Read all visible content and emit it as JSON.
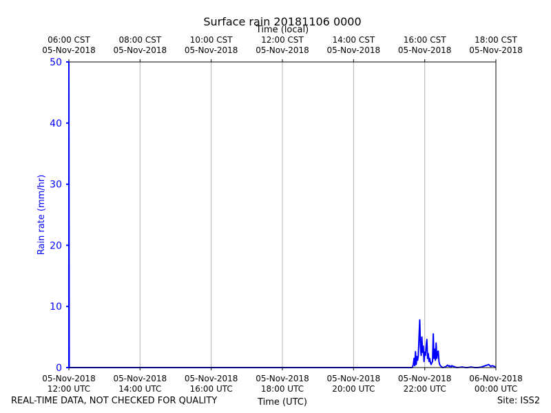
{
  "chart_data": {
    "type": "line",
    "title": "Surface rain 20181106 0000",
    "xlabel": "Time (UTC)",
    "xlabel_top": "Time (local)",
    "ylabel": "Rain rate (mm/hr)",
    "ylim": [
      0,
      50
    ],
    "xlim": [
      "05-Nov-2018 12:00 UTC",
      "06-Nov-2018 00:00 UTC"
    ],
    "grid": "vertical",
    "yticks": [
      0,
      10,
      20,
      30,
      40,
      50
    ],
    "xticks_bottom": [
      {
        "x": 12,
        "line1": "05-Nov-2018",
        "line2": "12:00 UTC"
      },
      {
        "x": 14,
        "line1": "05-Nov-2018",
        "line2": "14:00 UTC"
      },
      {
        "x": 16,
        "line1": "05-Nov-2018",
        "line2": "16:00 UTC"
      },
      {
        "x": 18,
        "line1": "05-Nov-2018",
        "line2": "18:00 UTC"
      },
      {
        "x": 20,
        "line1": "05-Nov-2018",
        "line2": "20:00 UTC"
      },
      {
        "x": 22,
        "line1": "05-Nov-2018",
        "line2": "22:00 UTC"
      },
      {
        "x": 24,
        "line1": "06-Nov-2018",
        "line2": "00:00 UTC"
      }
    ],
    "xticks_top": [
      {
        "x": 12,
        "line1": "06:00 CST",
        "line2": "05-Nov-2018"
      },
      {
        "x": 14,
        "line1": "08:00 CST",
        "line2": "05-Nov-2018"
      },
      {
        "x": 16,
        "line1": "10:00 CST",
        "line2": "05-Nov-2018"
      },
      {
        "x": 18,
        "line1": "12:00 CST",
        "line2": "05-Nov-2018"
      },
      {
        "x": 20,
        "line1": "14:00 CST",
        "line2": "05-Nov-2018"
      },
      {
        "x": 22,
        "line1": "16:00 CST",
        "line2": "05-Nov-2018"
      },
      {
        "x": 24,
        "line1": "18:00 CST",
        "line2": "05-Nov-2018"
      }
    ],
    "series": [
      {
        "color": "#0000ff",
        "x": [
          12.0,
          12.0,
          12.01,
          21.65,
          21.68,
          21.7,
          21.72,
          21.74,
          21.76,
          21.78,
          21.8,
          21.82,
          21.84,
          21.86,
          21.88,
          21.9,
          21.92,
          21.94,
          21.96,
          21.98,
          22.0,
          22.02,
          22.04,
          22.06,
          22.08,
          22.1,
          22.12,
          22.14,
          22.16,
          22.18,
          22.2,
          22.22,
          22.24,
          22.26,
          22.28,
          22.3,
          22.32,
          22.34,
          22.36,
          22.38,
          22.4,
          22.42,
          22.44,
          22.46,
          22.48,
          22.5,
          22.52,
          22.54,
          22.56,
          22.58,
          22.6,
          22.62,
          22.64,
          22.66,
          22.68,
          22.7,
          22.72,
          22.74,
          22.76,
          22.8,
          22.85,
          22.9,
          23.0,
          23.05,
          23.1,
          23.15,
          23.2,
          23.25,
          23.3,
          23.35,
          23.4,
          23.5,
          23.6,
          23.7,
          23.8,
          23.85,
          23.9,
          23.95,
          24.0
        ],
        "y": [
          0,
          50,
          0,
          0,
          0.5,
          1.5,
          0.3,
          2.6,
          0.5,
          1.8,
          1.2,
          2.0,
          5.0,
          7.8,
          3.5,
          2.0,
          5.0,
          2.5,
          3.5,
          1.0,
          2.5,
          2.0,
          3.5,
          4.6,
          1.5,
          2.3,
          1.0,
          1.5,
          0.8,
          0.5,
          0.8,
          1.0,
          5.5,
          1.5,
          3.0,
          1.2,
          4.0,
          1.5,
          2.5,
          2.7,
          1.0,
          0.5,
          0.3,
          0.2,
          0.1,
          0.0,
          0.0,
          0.05,
          0.1,
          0.1,
          0.2,
          0.3,
          0.4,
          0.3,
          0.2,
          0.3,
          0.2,
          0.1,
          0.3,
          0.2,
          0.1,
          0.0,
          0.05,
          0.1,
          0.05,
          0.0,
          0.0,
          0.05,
          0.1,
          0.05,
          0.0,
          0.0,
          0.1,
          0.3,
          0.5,
          0.2,
          0.3,
          0.2,
          0.0
        ]
      }
    ]
  },
  "footer": {
    "left": "REAL-TIME DATA, NOT CHECKED FOR QUALITY",
    "right": "Site: ISS2"
  }
}
